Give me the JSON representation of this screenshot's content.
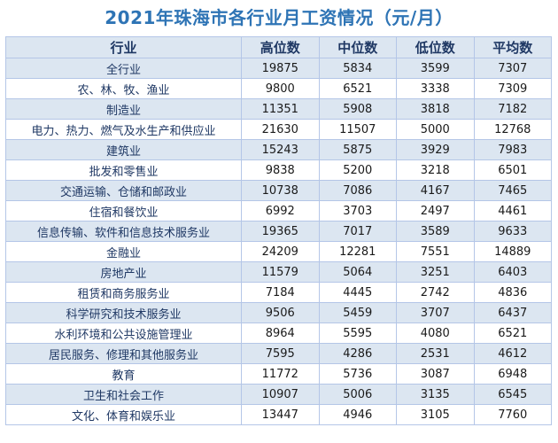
{
  "title": "2021年珠海市各行业月工资情况（元/月）",
  "headers": {
    "industry": "行业",
    "high": "高位数",
    "median": "中位数",
    "low": "低位数",
    "average": "平均数"
  },
  "rows": [
    {
      "industry": "全行业",
      "high": "19875",
      "median": "5834",
      "low": "3599",
      "average": "7307"
    },
    {
      "industry": "农、林、牧、渔业",
      "high": "9800",
      "median": "6521",
      "low": "3338",
      "average": "7309"
    },
    {
      "industry": "制造业",
      "high": "11351",
      "median": "5908",
      "low": "3818",
      "average": "7182"
    },
    {
      "industry": "电力、热力、燃气及水生产和供应业",
      "high": "21630",
      "median": "11507",
      "low": "5000",
      "average": "12768"
    },
    {
      "industry": "建筑业",
      "high": "15243",
      "median": "5875",
      "low": "3929",
      "average": "7983"
    },
    {
      "industry": "批发和零售业",
      "high": "9838",
      "median": "5200",
      "low": "3218",
      "average": "6501"
    },
    {
      "industry": "交通运输、仓储和邮政业",
      "high": "10738",
      "median": "7086",
      "low": "4167",
      "average": "7465"
    },
    {
      "industry": "住宿和餐饮业",
      "high": "6992",
      "median": "3703",
      "low": "2497",
      "average": "4461"
    },
    {
      "industry": "信息传输、软件和信息技术服务业",
      "high": "19365",
      "median": "7017",
      "low": "3589",
      "average": "9633"
    },
    {
      "industry": "金融业",
      "high": "24209",
      "median": "12281",
      "low": "7551",
      "average": "14889"
    },
    {
      "industry": "房地产业",
      "high": "11579",
      "median": "5064",
      "low": "3251",
      "average": "6403"
    },
    {
      "industry": "租赁和商务服务业",
      "high": "7184",
      "median": "4445",
      "low": "2742",
      "average": "4836"
    },
    {
      "industry": "科学研究和技术服务业",
      "high": "9506",
      "median": "5459",
      "low": "3707",
      "average": "6437"
    },
    {
      "industry": "水利环境和公共设施管理业",
      "high": "8964",
      "median": "5595",
      "low": "4080",
      "average": "6521"
    },
    {
      "industry": "居民服务、修理和其他服务业",
      "high": "7595",
      "median": "4286",
      "low": "2531",
      "average": "4612"
    },
    {
      "industry": "教育",
      "high": "11772",
      "median": "5736",
      "low": "3087",
      "average": "6948"
    },
    {
      "industry": "卫生和社会工作",
      "high": "10907",
      "median": "5006",
      "low": "3135",
      "average": "6545"
    },
    {
      "industry": "文化、体育和娱乐业",
      "high": "13447",
      "median": "4946",
      "low": "3105",
      "average": "7760"
    }
  ]
}
